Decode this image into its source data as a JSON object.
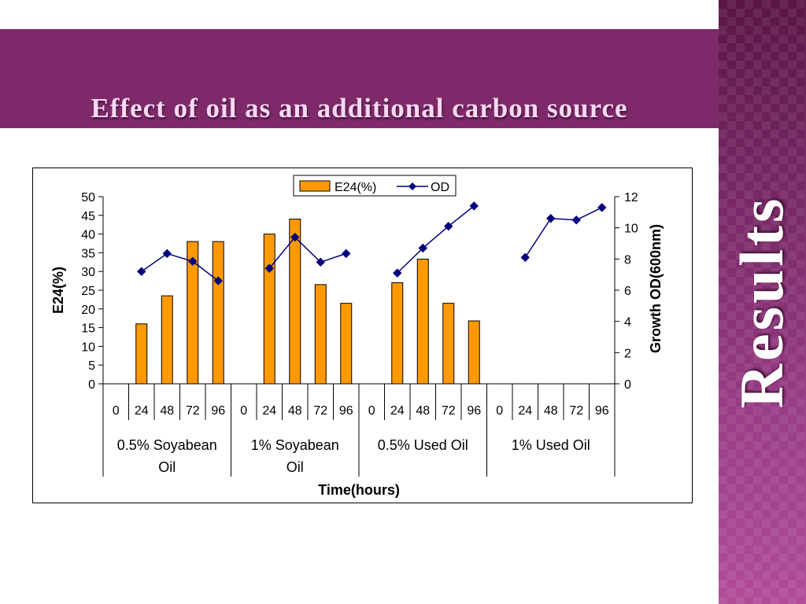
{
  "slide": {
    "title": "Effect of oil as an additional carbon source",
    "side_label": "Results"
  },
  "colors": {
    "banner": "#7e2a6a",
    "bar_fill": "#ff9900",
    "line": "#00007f"
  },
  "chart_data": {
    "type": "bar",
    "title": "",
    "xlabel": "Time(hours)",
    "ylabel": "E24(%)",
    "y2label": "Growth OD(600nm)",
    "ylim": [
      0,
      50
    ],
    "y2lim": [
      0,
      12
    ],
    "yticks": [
      "0",
      "5",
      "10",
      "15",
      "20",
      "25",
      "30",
      "35",
      "40",
      "45",
      "50"
    ],
    "y2ticks": [
      "0",
      "2",
      "4",
      "6",
      "8",
      "10",
      "12"
    ],
    "grid": false,
    "legend_position": "top",
    "groups": [
      {
        "line1": "0.5% Soyabean",
        "line2": "Oil",
        "categories": [
          "0",
          "24",
          "48",
          "72",
          "96"
        ]
      },
      {
        "line1": "1% Soyabean",
        "line2": "Oil",
        "categories": [
          "0",
          "24",
          "48",
          "72",
          "96"
        ]
      },
      {
        "line1": "0.5% Used Oil",
        "line2": "",
        "categories": [
          "0",
          "24",
          "48",
          "72",
          "96"
        ]
      },
      {
        "line1": "1% Used Oil",
        "line2": "",
        "categories": [
          "0",
          "24",
          "48",
          "72",
          "96"
        ]
      }
    ],
    "series": [
      {
        "name": "E24(%)",
        "kind": "bar",
        "axis": "left",
        "values": [
          null,
          16,
          23.5,
          38,
          38,
          null,
          40,
          44,
          26.5,
          21.5,
          null,
          27,
          33.3,
          21.5,
          16.8,
          null,
          null,
          null,
          null,
          null
        ]
      },
      {
        "name": "OD",
        "kind": "line",
        "axis": "right",
        "values": [
          null,
          7.2,
          8.35,
          7.85,
          6.6,
          null,
          7.4,
          9.4,
          7.8,
          8.35,
          null,
          7.1,
          8.7,
          10.1,
          11.4,
          null,
          8.1,
          10.6,
          10.5,
          11.3
        ]
      }
    ]
  }
}
